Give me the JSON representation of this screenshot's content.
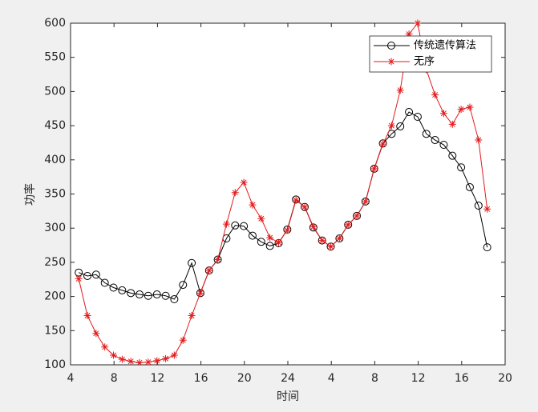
{
  "chart_data": {
    "type": "line",
    "xlabel": "时间",
    "ylabel": "功率",
    "x": [
      4.75,
      5.55,
      6.35,
      7.15,
      7.95,
      8.75,
      9.55,
      10.35,
      11.15,
      11.95,
      12.75,
      13.55,
      14.35,
      15.15,
      15.95,
      16.75,
      17.55,
      18.35,
      19.15,
      19.95,
      20.75,
      21.55,
      22.35,
      23.15,
      23.95,
      24.75,
      25.55,
      26.35,
      27.15,
      27.95,
      28.75,
      29.55,
      30.35,
      31.15,
      31.95,
      32.75,
      33.55,
      34.35,
      35.15,
      35.95,
      36.75,
      37.55,
      38.35,
      39.15,
      39.95,
      40.75,
      41.55,
      42.35
    ],
    "series": [
      {
        "name": "传统遗传算法",
        "color": "#000000",
        "marker": "circle",
        "values": [
          235,
          230,
          232,
          220,
          213,
          209,
          205,
          203,
          201,
          203,
          201,
          196,
          217,
          249,
          205,
          238,
          254,
          285,
          304,
          303,
          289,
          280,
          274,
          278,
          298,
          342,
          331,
          301,
          282,
          273,
          285,
          305,
          318,
          339,
          387,
          424,
          438,
          449,
          470,
          463,
          438,
          429,
          422,
          406,
          389,
          360,
          333,
          272
        ]
      },
      {
        "name": "无序",
        "color": "#e31a1c",
        "marker": "asterisk",
        "values": [
          226,
          172,
          146,
          126,
          114,
          108,
          105,
          103,
          104,
          106,
          109,
          114,
          136,
          172,
          205,
          238,
          254,
          306,
          352,
          367,
          334,
          314,
          286,
          279,
          297,
          341,
          331,
          302,
          282,
          273,
          285,
          305,
          318,
          339,
          387,
          423,
          450,
          502,
          584,
          600,
          532,
          495,
          468,
          452,
          474,
          477,
          429,
          328
        ]
      }
    ],
    "xlim": [
      4,
      44
    ],
    "ylim": [
      100,
      600
    ],
    "xticks": [
      4,
      8,
      12,
      16,
      20,
      24,
      {
        "value": 28,
        "label": "4"
      },
      {
        "value": 32,
        "label": "8"
      },
      {
        "value": 36,
        "label": "12"
      },
      {
        "value": 40,
        "label": "16"
      },
      {
        "value": 44,
        "label": "20"
      }
    ],
    "yticks": [
      100,
      150,
      200,
      250,
      300,
      350,
      400,
      450,
      500,
      550,
      600
    ],
    "legend": "upper right"
  }
}
